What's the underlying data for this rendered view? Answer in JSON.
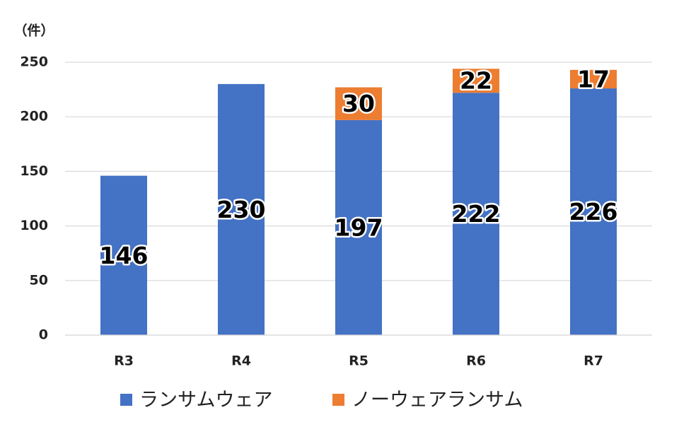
{
  "chart_data": {
    "type": "bar",
    "stacked": true,
    "y_label": "（件）",
    "categories": [
      "R3",
      "R4",
      "R5",
      "R6",
      "R7"
    ],
    "series": [
      {
        "name": "ランサムウェア",
        "color": "#4472c4",
        "values": [
          146,
          230,
          197,
          222,
          226
        ]
      },
      {
        "name": "ノーウェアランサム",
        "color": "#ed7d31",
        "values": [
          null,
          null,
          30,
          22,
          17
        ]
      }
    ],
    "ylim": [
      0,
      250
    ],
    "yticks": [
      0,
      50,
      100,
      150,
      200,
      250
    ],
    "grid": true,
    "legend": "bottom"
  }
}
